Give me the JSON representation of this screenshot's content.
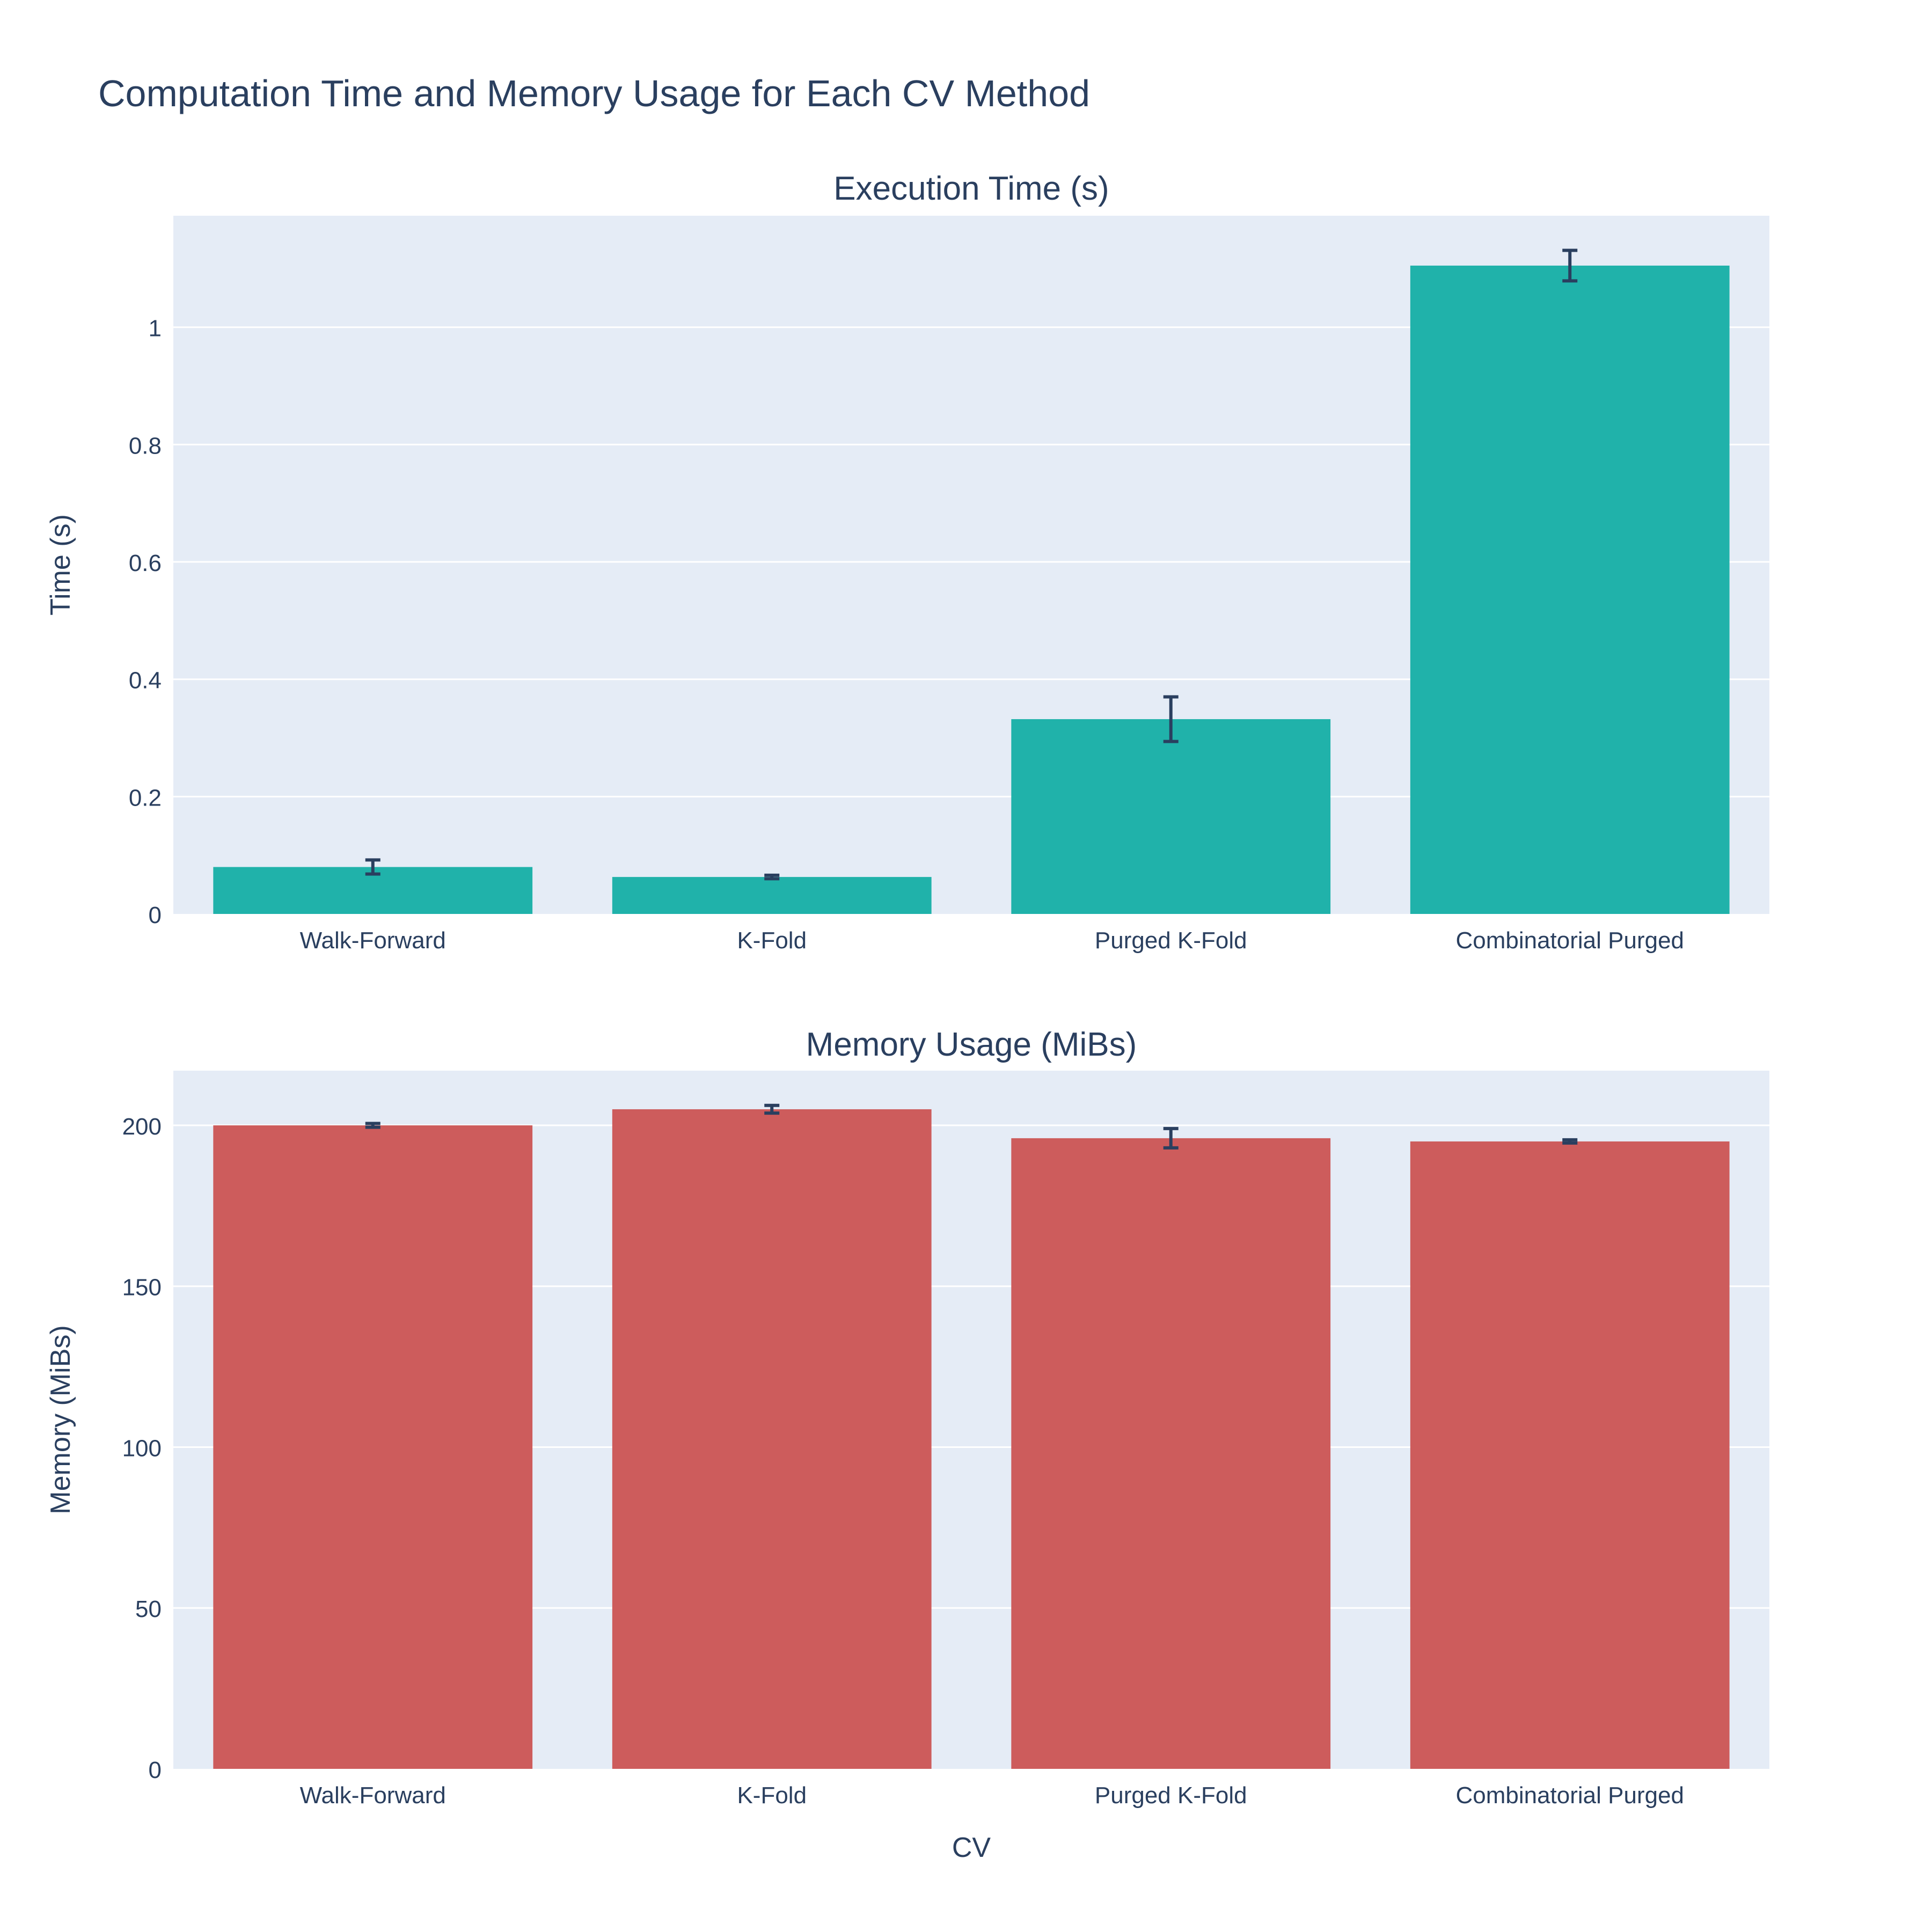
{
  "title": "Computation Time and Memory Usage for Each CV Method",
  "xlabel": "CV",
  "colors": {
    "plot_bg": "#e5ecf6",
    "grid": "#ffffff",
    "text": "#2a3f5f",
    "error_bar": "#2a3f5f"
  },
  "chart_data": [
    {
      "type": "bar",
      "title": "Execution Time (s)",
      "xlabel": "",
      "ylabel": "Time (s)",
      "categories": [
        "Walk-Forward",
        "K-Fold",
        "Purged K-Fold",
        "Combinatorial Purged"
      ],
      "values": [
        0.08,
        0.063,
        0.332,
        1.105
      ],
      "error": [
        0.012,
        0.003,
        0.038,
        0.026
      ],
      "color": "#20b2aa",
      "ylim": [
        0,
        1.19
      ],
      "yticks": [
        0,
        0.2,
        0.4,
        0.6,
        0.8,
        1
      ],
      "ytick_labels": [
        "0",
        "0.2",
        "0.4",
        "0.6",
        "0.8",
        "1"
      ],
      "grid": true
    },
    {
      "type": "bar",
      "title": "Memory Usage (MiBs)",
      "xlabel": "CV",
      "ylabel": "Memory (MiBs)",
      "categories": [
        "Walk-Forward",
        "K-Fold",
        "Purged K-Fold",
        "Combinatorial Purged"
      ],
      "values": [
        200,
        205,
        196,
        195
      ],
      "error": [
        0.6,
        1.2,
        3.0,
        0.5
      ],
      "color": "#cd5c5c",
      "ylim": [
        0,
        217
      ],
      "yticks": [
        0,
        50,
        100,
        150,
        200
      ],
      "ytick_labels": [
        "0",
        "50",
        "100",
        "150",
        "200"
      ],
      "grid": true
    }
  ]
}
